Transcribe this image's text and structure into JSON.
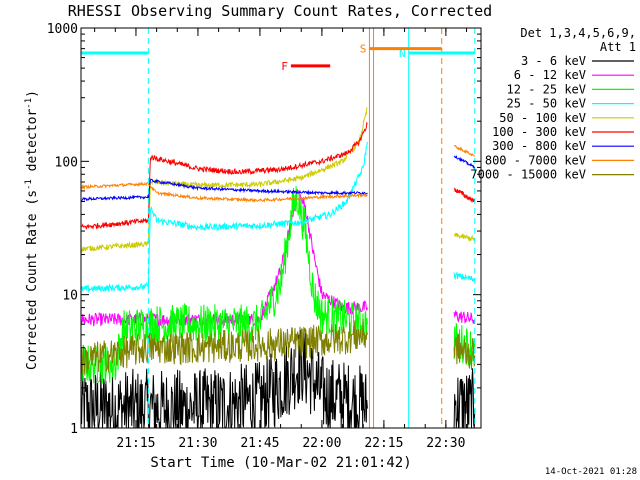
{
  "chart_data": {
    "type": "line",
    "title": "RHESSI Observing Summary Count Rates, Corrected",
    "xlabel": "Start Time (10-Mar-02 21:01:42)",
    "ylabel": "Corrected Count Rate (s⁻¹ detector⁻¹)",
    "ylabel_main": "Corrected Count Rate (s",
    "ylabel_exp1": "-1",
    "ylabel_mid": " detector",
    "ylabel_exp2": "-1",
    "ylabel_end": ")",
    "yscale": "log",
    "ylim": [
      1,
      1000
    ],
    "xlim": [
      "21:01:42",
      "22:38:30"
    ],
    "x_ticks": [
      "21:15",
      "21:30",
      "21:45",
      "22:00",
      "22:15",
      "22:30"
    ],
    "y_ticks": [
      "1",
      "10",
      "100",
      "1000"
    ],
    "footer_date": "14-Oct-2021 01:28",
    "legend": {
      "header_line1": "Det 1,3,4,5,6,9,",
      "header_line2": "Att 1",
      "entries": [
        {
          "label": "3 - 6 keV",
          "color": "#000000"
        },
        {
          "label": "6 - 12 keV",
          "color": "#ff00ff"
        },
        {
          "label": "12 - 25 keV",
          "color": "#00ff00"
        },
        {
          "label": "25 - 50 keV",
          "color": "#00ffff"
        },
        {
          "label": "50 - 100 keV",
          "color": "#cccc00"
        },
        {
          "label": "100 - 300 keV",
          "color": "#ff0000"
        },
        {
          "label": "300 - 800 keV",
          "color": "#0000ff"
        },
        {
          "label": "800 - 7000 keV",
          "color": "#ff8000"
        },
        {
          "label": "7000 - 15000 keV",
          "color": "#808000"
        }
      ]
    },
    "flag_bars": [
      {
        "label": "N",
        "color": "#00ffff",
        "start": "21:01:42",
        "end": "21:18:00",
        "level": 650
      },
      {
        "label": "N",
        "color": "#00ffff",
        "start": "22:21:00",
        "end": "22:37:00",
        "level": 650
      },
      {
        "label": "F",
        "color": "#ff0000",
        "start": "21:52:30",
        "end": "22:02:00",
        "level": 520
      },
      {
        "label": "S",
        "color": "#ff8000",
        "start": "22:11:30",
        "end": "22:29:00",
        "level": 700
      }
    ],
    "vertical_markers": [
      {
        "time": "21:18:00",
        "color": "#00ffff",
        "style": "dashed"
      },
      {
        "time": "22:11:30",
        "color": "#ff8000",
        "style": "solid"
      },
      {
        "time": "22:12:30",
        "color": "#ff8000",
        "style": "solid"
      },
      {
        "time": "22:21:00",
        "color": "#00ffff",
        "style": "solid"
      },
      {
        "time": "22:29:00",
        "color": "#ff8000",
        "style": "dashed"
      },
      {
        "time": "22:37:00",
        "color": "#00ffff",
        "style": "dashed"
      }
    ],
    "series": [
      {
        "name": "3 - 6 keV",
        "color": "#000000",
        "noise": 0.6,
        "segments": [
          [
            [
              "21:01:42",
              1.4
            ],
            [
              "21:18:00",
              1.4
            ],
            [
              "21:30:00",
              1.4
            ],
            [
              "21:45:00",
              1.6
            ],
            [
              "21:49:00",
              2.0
            ],
            [
              "21:55:00",
              3.0
            ],
            [
              "21:57:00",
              2.5
            ],
            [
              "22:00:00",
              1.8
            ],
            [
              "22:10:00",
              1.5
            ],
            [
              "22:11:00",
              1.4
            ]
          ],
          [
            [
              "22:32:00",
              1.5
            ],
            [
              "22:37:00",
              1.4
            ]
          ]
        ]
      },
      {
        "name": "6 - 12 keV",
        "color": "#ff00ff",
        "noise": 0.1,
        "segments": [
          [
            [
              "21:01:42",
              6.5
            ],
            [
              "21:18:00",
              6.5
            ],
            [
              "21:45:00",
              6.5
            ],
            [
              "21:50:00",
              15
            ],
            [
              "21:53:00",
              40
            ],
            [
              "21:54:00",
              60
            ],
            [
              "21:56:00",
              45
            ],
            [
              "21:58:00",
              20
            ],
            [
              "22:00:00",
              10
            ],
            [
              "22:05:00",
              8
            ],
            [
              "22:11:00",
              8
            ]
          ],
          [
            [
              "22:32:00",
              7
            ],
            [
              "22:37:00",
              6.5
            ]
          ]
        ]
      },
      {
        "name": "12 - 25 keV",
        "color": "#00ff00",
        "noise": 0.3,
        "segments": [
          [
            [
              "21:01:42",
              3.0
            ],
            [
              "21:10:00",
              3.0
            ],
            [
              "21:12:00",
              5.5
            ],
            [
              "21:18:00",
              6.0
            ],
            [
              "21:45:00",
              6.0
            ],
            [
              "21:50:00",
              12
            ],
            [
              "21:53:00",
              45
            ],
            [
              "21:54:00",
              55
            ],
            [
              "21:56:00",
              30
            ],
            [
              "21:58:00",
              10
            ],
            [
              "22:00:00",
              7
            ],
            [
              "22:11:00",
              6.0
            ]
          ],
          [
            [
              "22:32:00",
              4.5
            ],
            [
              "22:37:00",
              4.0
            ]
          ]
        ]
      },
      {
        "name": "25 - 50 keV",
        "color": "#00ffff",
        "noise": 0.05,
        "segments": [
          [
            [
              "21:01:42",
              11
            ],
            [
              "21:18:00",
              11.5
            ],
            [
              "21:18:30",
              45
            ],
            [
              "21:20:00",
              36
            ],
            [
              "21:30:00",
              32
            ],
            [
              "21:45:00",
              33
            ],
            [
              "21:55:00",
              35
            ],
            [
              "22:02:00",
              40
            ],
            [
              "22:06:00",
              50
            ],
            [
              "22:10:00",
              90
            ],
            [
              "22:11:00",
              140
            ]
          ],
          [
            [
              "22:32:00",
              14
            ],
            [
              "22:37:00",
              13
            ]
          ]
        ]
      },
      {
        "name": "50 - 100 keV",
        "color": "#cccc00",
        "noise": 0.04,
        "segments": [
          [
            [
              "21:01:42",
              22
            ],
            [
              "21:18:00",
              24
            ],
            [
              "21:18:30",
              70
            ],
            [
              "21:30:00",
              66
            ],
            [
              "21:45:00",
              67
            ],
            [
              "21:55:00",
              75
            ],
            [
              "22:05:00",
              100
            ],
            [
              "22:09:00",
              140
            ],
            [
              "22:11:00",
              250
            ]
          ],
          [
            [
              "22:32:00",
              28
            ],
            [
              "22:37:00",
              26
            ]
          ]
        ]
      },
      {
        "name": "100 - 300 keV",
        "color": "#ff0000",
        "noise": 0.04,
        "segments": [
          [
            [
              "21:01:42",
              32
            ],
            [
              "21:18:00",
              36
            ],
            [
              "21:18:30",
              108
            ],
            [
              "21:30:00",
              88
            ],
            [
              "21:40:00",
              83
            ],
            [
              "21:50:00",
              87
            ],
            [
              "22:00:00",
              100
            ],
            [
              "22:06:00",
              115
            ],
            [
              "22:09:00",
              140
            ],
            [
              "22:11:00",
              190
            ]
          ],
          [
            [
              "22:32:00",
              62
            ],
            [
              "22:37:00",
              50
            ]
          ]
        ]
      },
      {
        "name": "300 - 800 keV",
        "color": "#0000ff",
        "noise": 0.02,
        "segments": [
          [
            [
              "21:01:42",
              52
            ],
            [
              "21:18:00",
              54
            ],
            [
              "21:18:30",
              72
            ],
            [
              "21:30:00",
              63
            ],
            [
              "21:45:00",
              60
            ],
            [
              "22:00:00",
              58
            ],
            [
              "22:11:00",
              58
            ]
          ],
          [
            [
              "22:32:00",
              110
            ],
            [
              "22:37:00",
              90
            ]
          ]
        ]
      },
      {
        "name": "800 - 7000 keV",
        "color": "#ff8000",
        "noise": 0.02,
        "segments": [
          [
            [
              "21:01:42",
              64
            ],
            [
              "21:18:00",
              68
            ],
            [
              "21:20:00",
              58
            ],
            [
              "21:30:00",
              53
            ],
            [
              "21:45:00",
              51
            ],
            [
              "22:00:00",
              54
            ],
            [
              "22:11:00",
              56
            ]
          ],
          [
            [
              "22:32:00",
              130
            ],
            [
              "22:37:00",
              110
            ]
          ]
        ]
      },
      {
        "name": "7000 - 15000 keV",
        "color": "#808000",
        "noise": 0.25,
        "segments": [
          [
            [
              "21:01:42",
              3.2
            ],
            [
              "21:18:00",
              4.0
            ],
            [
              "21:30:00",
              4.0
            ],
            [
              "21:45:00",
              4.2
            ],
            [
              "22:00:00",
              4.5
            ],
            [
              "22:11:00",
              5.0
            ]
          ],
          [
            [
              "22:32:00",
              4.0
            ],
            [
              "22:37:00",
              3.5
            ]
          ]
        ]
      }
    ]
  }
}
